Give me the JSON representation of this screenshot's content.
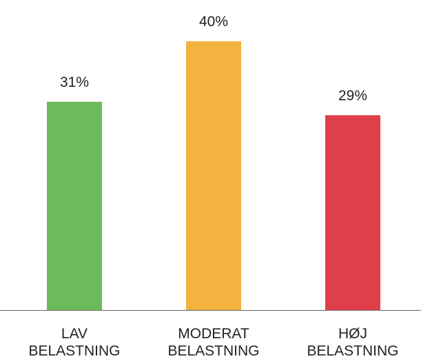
{
  "chart_data": {
    "type": "bar",
    "categories": [
      [
        "LAV",
        "BELASTNING"
      ],
      [
        "MODERAT",
        "BELASTNING"
      ],
      [
        "HØJ",
        "BELASTNING"
      ]
    ],
    "values": [
      31,
      40,
      29
    ],
    "value_labels": [
      "31%",
      "40%",
      "29%"
    ],
    "colors": [
      "#6cbb5a",
      "#f2b33f",
      "#de3f48"
    ],
    "axis_color": "#666666",
    "ylim": [
      0,
      40
    ],
    "grid": false,
    "legend": "none",
    "title": "",
    "xlabel": "",
    "ylabel": ""
  }
}
